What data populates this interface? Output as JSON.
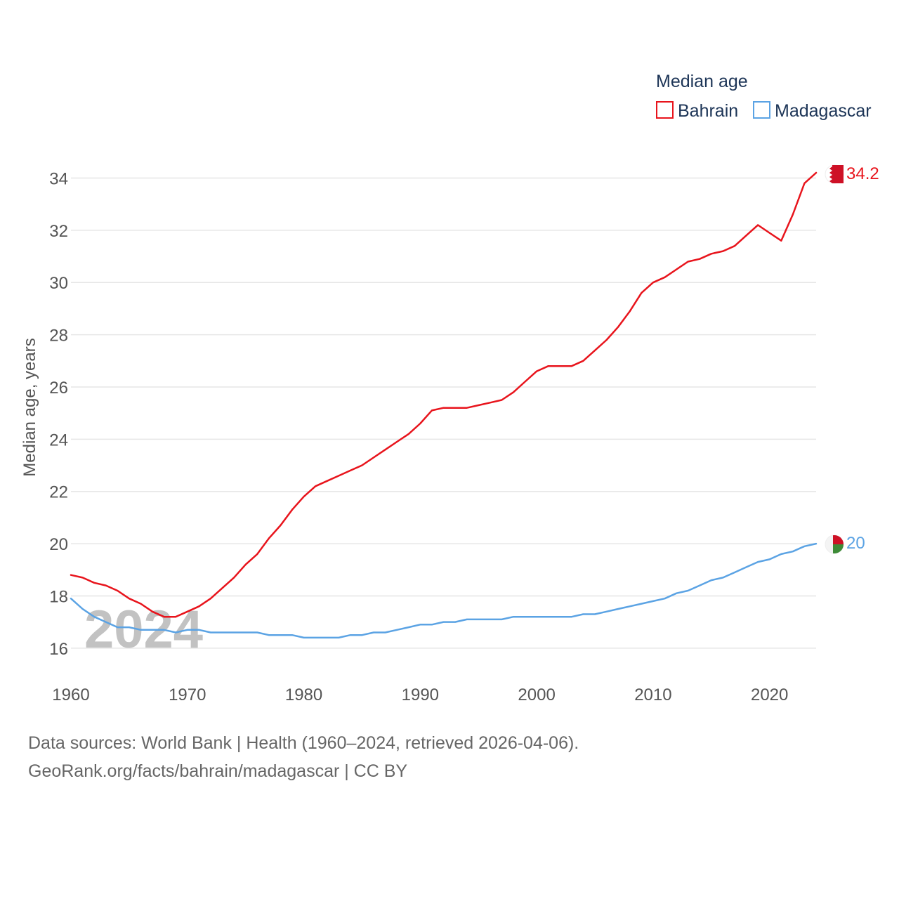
{
  "legend": {
    "title": "Median age",
    "items": [
      {
        "label": "Bahrain",
        "color": "#e8141c"
      },
      {
        "label": "Madagascar",
        "color": "#5ba3e4"
      }
    ]
  },
  "year_watermark": "2024",
  "footer": {
    "line1": "Data sources: World Bank | Health (1960–2024, retrieved 2026-04-06).",
    "line2": "GeoRank.org/facts/bahrain/madagascar | CC BY"
  },
  "end_labels": {
    "bahrain": "34.2",
    "madagascar": "20"
  },
  "colors": {
    "bahrain": "#e8141c",
    "madagascar": "#5ba3e4",
    "grid": "#e6e6e6",
    "axis_text": "#555555",
    "legend_text": "#1d3557",
    "watermark": "#bbbbbb",
    "flag_red": "#ce1126",
    "flag_green": "#3d8b37"
  },
  "chart_data": {
    "type": "line",
    "title": "Median age",
    "xlabel": "",
    "ylabel": "Median age, years",
    "xlim": [
      1960,
      2024
    ],
    "ylim": [
      15,
      34.9
    ],
    "yticks": [
      16,
      18,
      20,
      22,
      24,
      26,
      28,
      30,
      32,
      34
    ],
    "xticks": [
      1960,
      1970,
      1980,
      1990,
      2000,
      2010,
      2020
    ],
    "x": [
      1960,
      1961,
      1962,
      1963,
      1964,
      1965,
      1966,
      1967,
      1968,
      1969,
      1970,
      1971,
      1972,
      1973,
      1974,
      1975,
      1976,
      1977,
      1978,
      1979,
      1980,
      1981,
      1982,
      1983,
      1984,
      1985,
      1986,
      1987,
      1988,
      1989,
      1990,
      1991,
      1992,
      1993,
      1994,
      1995,
      1996,
      1997,
      1998,
      1999,
      2000,
      2001,
      2002,
      2003,
      2004,
      2005,
      2006,
      2007,
      2008,
      2009,
      2010,
      2011,
      2012,
      2013,
      2014,
      2015,
      2016,
      2017,
      2018,
      2019,
      2020,
      2021,
      2022,
      2023,
      2024
    ],
    "series": [
      {
        "name": "Bahrain",
        "values": [
          18.8,
          18.7,
          18.5,
          18.4,
          18.2,
          17.9,
          17.7,
          17.4,
          17.2,
          17.2,
          17.4,
          17.6,
          17.9,
          18.3,
          18.7,
          19.2,
          19.6,
          20.2,
          20.7,
          21.3,
          21.8,
          22.2,
          22.4,
          22.6,
          22.8,
          23.0,
          23.3,
          23.6,
          23.9,
          24.2,
          24.6,
          25.1,
          25.2,
          25.2,
          25.2,
          25.3,
          25.4,
          25.5,
          25.8,
          26.2,
          26.6,
          26.8,
          26.8,
          26.8,
          27.0,
          27.4,
          27.8,
          28.3,
          28.9,
          29.6,
          30.0,
          30.2,
          30.5,
          30.8,
          30.9,
          31.1,
          31.2,
          31.4,
          31.8,
          32.2,
          31.9,
          31.6,
          32.6,
          33.8,
          34.2
        ]
      },
      {
        "name": "Madagascar",
        "values": [
          17.9,
          17.5,
          17.2,
          17.0,
          16.8,
          16.8,
          16.7,
          16.7,
          16.7,
          16.6,
          16.7,
          16.7,
          16.6,
          16.6,
          16.6,
          16.6,
          16.6,
          16.5,
          16.5,
          16.5,
          16.4,
          16.4,
          16.4,
          16.4,
          16.5,
          16.5,
          16.6,
          16.6,
          16.7,
          16.8,
          16.9,
          16.9,
          17.0,
          17.0,
          17.1,
          17.1,
          17.1,
          17.1,
          17.2,
          17.2,
          17.2,
          17.2,
          17.2,
          17.2,
          17.3,
          17.3,
          17.4,
          17.5,
          17.6,
          17.7,
          17.8,
          17.9,
          18.1,
          18.2,
          18.4,
          18.6,
          18.7,
          18.9,
          19.1,
          19.3,
          19.4,
          19.6,
          19.7,
          19.9,
          20.0
        ]
      }
    ]
  }
}
